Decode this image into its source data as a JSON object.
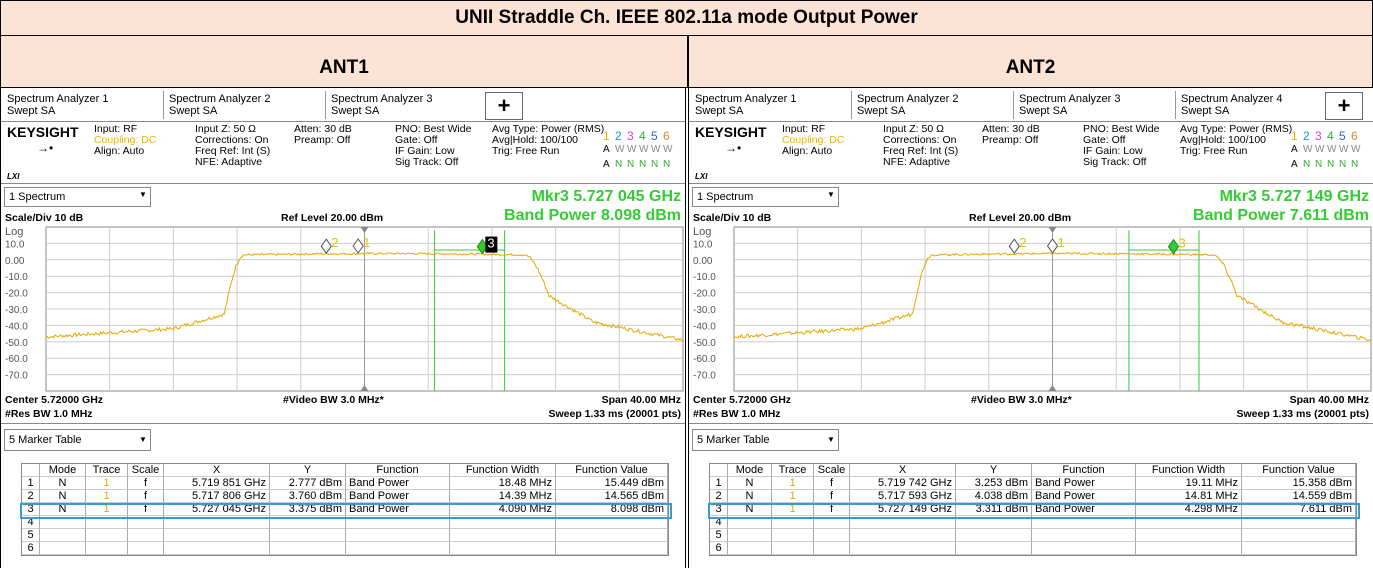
{
  "title": "UNII Straddle Ch. IEEE 802.11a mode Output Power",
  "panels": [
    {
      "heading": "ANT1",
      "tabs": [
        {
          "name": "Spectrum Analyzer 1",
          "mode": "Swept SA"
        },
        {
          "name": "Spectrum Analyzer 2",
          "mode": "Swept SA"
        },
        {
          "name": "Spectrum Analyzer 3",
          "mode": "Swept SA"
        }
      ],
      "add_button": "+",
      "brand": "KEYSIGHT",
      "lxi": "LXI",
      "settings": [
        [
          "Input: RF",
          "Coupling: DC",
          "Align: Auto"
        ],
        [
          "Input Z: 50 Ω",
          "Corrections: On",
          "Freq Ref: Int (S)",
          "NFE: Adaptive"
        ],
        [
          "Atten: 30 dB",
          "Preamp: Off"
        ],
        [
          "PNO: Best Wide",
          "Gate: Off",
          "IF Gain: Low",
          "Sig Track: Off"
        ],
        [
          "Avg Type: Power (RMS)",
          "Avg|Hold: 100/100",
          "Trig: Free Run"
        ]
      ],
      "trace_status": [
        [
          "1",
          "2",
          "3",
          "4",
          "5",
          "6"
        ],
        [
          "A",
          "W",
          "W",
          "W",
          "W",
          "W"
        ],
        [
          "A",
          "N",
          "N",
          "N",
          "N",
          "N"
        ]
      ],
      "view": "1 Spectrum",
      "marker": "Mkr3  5.727 045 GHz",
      "band_power": "Band Power  8.098 dBm",
      "scale": "Scale/Div 10 dB",
      "ref_level": "Ref Level 20.00 dBm",
      "log": "Log",
      "ytick_labels": [
        "10.0",
        "0.00",
        "-10.0",
        "-20.0",
        "-30.0",
        "-40.0",
        "-50.0",
        "-60.0",
        "-70.0"
      ],
      "marker_labels": [
        "2",
        "1",
        "3"
      ],
      "center": "Center 5.72000 GHz",
      "video_bw": "#Video BW 3.0 MHz*",
      "span": "Span 40.00 MHz",
      "res_bw": "#Res BW 1.0 MHz",
      "sweep": "Sweep 1.33 ms (20001 pts)",
      "table_view": "5 Marker Table",
      "table": {
        "columns": [
          "Mode",
          "Trace",
          "Scale",
          "X",
          "Y",
          "Function",
          "Function Width",
          "Function Value"
        ],
        "rows": [
          [
            "1",
            "N",
            "1",
            "f",
            "5.719 851 GHz",
            "2.777 dBm",
            "Band Power",
            "18.48 MHz",
            "15.449 dBm"
          ],
          [
            "2",
            "N",
            "1",
            "f",
            "5.717 806 GHz",
            "3.760 dBm",
            "Band Power",
            "14.39 MHz",
            "14.565 dBm"
          ],
          [
            "3",
            "N",
            "1",
            "f",
            "5.727 045 GHz",
            "3.375 dBm",
            "Band Power",
            "4.090 MHz",
            "8.098 dBm"
          ],
          [
            "4"
          ],
          [
            "5"
          ],
          [
            "6"
          ]
        ]
      }
    },
    {
      "heading": "ANT2",
      "tabs": [
        {
          "name": "Spectrum Analyzer 1",
          "mode": "Swept SA"
        },
        {
          "name": "Spectrum Analyzer 2",
          "mode": "Swept SA"
        },
        {
          "name": "Spectrum Analyzer 3",
          "mode": "Swept SA"
        },
        {
          "name": "Spectrum Analyzer 4",
          "mode": "Swept SA"
        }
      ],
      "add_button": "+",
      "brand": "KEYSIGHT",
      "lxi": "LXI",
      "settings": [
        [
          "Input: RF",
          "Coupling: DC",
          "Align: Auto"
        ],
        [
          "Input Z: 50 Ω",
          "Corrections: On",
          "Freq Ref: Int (S)",
          "NFE: Adaptive"
        ],
        [
          "Atten: 30 dB",
          "Preamp: Off"
        ],
        [
          "PNO: Best Wide",
          "Gate: Off",
          "IF Gain: Low",
          "Sig Track: Off"
        ],
        [
          "Avg Type: Power (RMS)",
          "Avg|Hold: 100/100",
          "Trig: Free Run"
        ]
      ],
      "trace_status": [
        [
          "1",
          "2",
          "3",
          "4",
          "5",
          "6"
        ],
        [
          "A",
          "W",
          "W",
          "W",
          "W",
          "W"
        ],
        [
          "A",
          "N",
          "N",
          "N",
          "N",
          "N"
        ]
      ],
      "view": "1 Spectrum",
      "marker": "Mkr3  5.727 149 GHz",
      "band_power": "Band Power 7.611 dBm",
      "scale": "Scale/Div 10 dB",
      "ref_level": "Ref Level 20.00 dBm",
      "log": "Log",
      "ytick_labels": [
        "10.0",
        "0.00",
        "-10.0",
        "-20.0",
        "-30.0",
        "-40.0",
        "-50.0",
        "-60.0",
        "-70.0"
      ],
      "marker_labels": [
        "2",
        "1",
        "3"
      ],
      "center": "Center 5.72000 GHz",
      "video_bw": "#Video BW 3.0 MHz*",
      "span": "Span 40.00 MHz",
      "res_bw": "#Res BW 1.0 MHz",
      "sweep": "Sweep 1.33 ms (20001 pts)",
      "table_view": "5 Marker Table",
      "table": {
        "columns": [
          "Mode",
          "Trace",
          "Scale",
          "X",
          "Y",
          "Function",
          "Function Width",
          "Function Value"
        ],
        "rows": [
          [
            "1",
            "N",
            "1",
            "f",
            "5.719 742 GHz",
            "3.253 dBm",
            "Band Power",
            "19.11 MHz",
            "15.358 dBm"
          ],
          [
            "2",
            "N",
            "1",
            "f",
            "5.717 593 GHz",
            "4.038 dBm",
            "Band Power",
            "14.81 MHz",
            "14.559 dBm"
          ],
          [
            "3",
            "N",
            "1",
            "f",
            "5.727 149 GHz",
            "3.311 dBm",
            "Band Power",
            "4.298 MHz",
            "7.611 dBm"
          ],
          [
            "4"
          ],
          [
            "5"
          ],
          [
            "6"
          ]
        ]
      }
    }
  ]
}
